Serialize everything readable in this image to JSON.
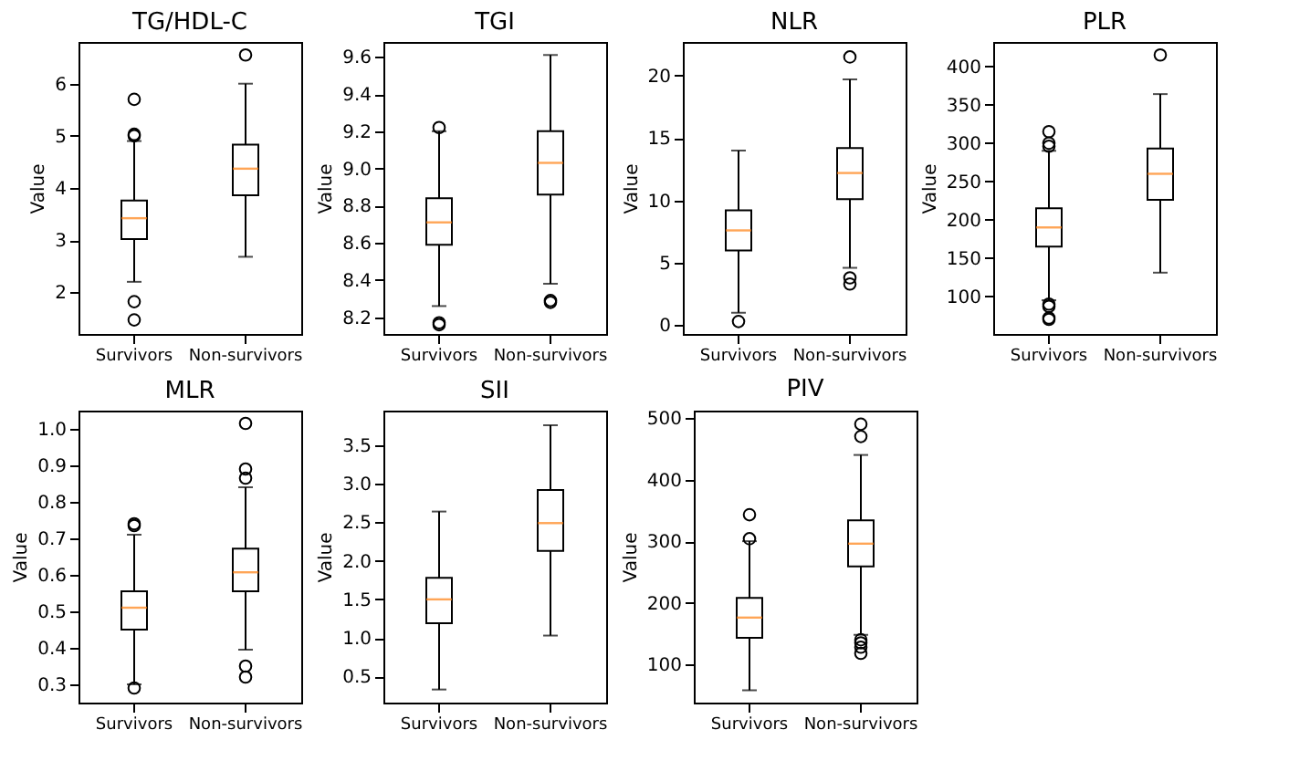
{
  "chart_data": [
    {
      "type": "box",
      "title": "TG/HDL-C",
      "ylabel": "Value",
      "categories": [
        "Survivors",
        "Non-survivors"
      ],
      "ylim": [
        1.2,
        6.8
      ],
      "yticks": [
        2,
        3,
        4,
        5,
        6
      ],
      "boxes": [
        {
          "low": 2.2,
          "q1": 3.02,
          "median": 3.42,
          "q3": 3.76,
          "high": 4.9,
          "outliers": [
            5.7,
            5.03,
            5.0,
            1.82,
            1.47
          ]
        },
        {
          "low": 2.68,
          "q1": 3.86,
          "median": 4.37,
          "q3": 4.83,
          "high": 6.0,
          "outliers": [
            6.55
          ]
        }
      ]
    },
    {
      "type": "box",
      "title": "TGI",
      "ylabel": "Value",
      "categories": [
        "Survivors",
        "Non-survivors"
      ],
      "ylim": [
        8.11,
        9.68
      ],
      "yticks": [
        8.2,
        8.4,
        8.6,
        8.8,
        {
          "value": 9,
          "label": "9.0"
        },
        9.2,
        9.4,
        9.6
      ],
      "boxes": [
        {
          "low": 8.26,
          "q1": 8.59,
          "median": 8.71,
          "q3": 8.84,
          "high": 9.2,
          "outliers": [
            9.22,
            8.17,
            8.16
          ]
        },
        {
          "low": 8.38,
          "q1": 8.86,
          "median": 9.03,
          "q3": 9.2,
          "high": 9.61,
          "outliers": [
            8.29,
            8.28
          ]
        }
      ]
    },
    {
      "type": "box",
      "title": "NLR",
      "ylabel": "Value",
      "categories": [
        "Survivors",
        "Non-survivors"
      ],
      "ylim": [
        -0.7,
        22.7
      ],
      "yticks": [
        0,
        5,
        10,
        15,
        20
      ],
      "boxes": [
        {
          "low": 1.0,
          "q1": 6.0,
          "median": 7.6,
          "q3": 9.2,
          "high": 14.0,
          "outliers": [
            0.3
          ]
        },
        {
          "low": 4.6,
          "q1": 10.1,
          "median": 12.2,
          "q3": 14.2,
          "high": 19.7,
          "outliers": [
            21.5,
            3.8,
            3.3
          ]
        }
      ]
    },
    {
      "type": "box",
      "title": "PLR",
      "ylabel": "Value",
      "categories": [
        "Survivors",
        "Non-survivors"
      ],
      "ylim": [
        51,
        432
      ],
      "yticks": [
        100,
        150,
        200,
        250,
        300,
        350,
        400
      ],
      "boxes": [
        {
          "low": 95,
          "q1": 165,
          "median": 190,
          "q3": 215,
          "high": 290,
          "outliers": [
            315,
            300,
            296,
            90,
            87,
            72,
            70
          ]
        },
        {
          "low": 131,
          "q1": 226,
          "median": 260,
          "q3": 293,
          "high": 364,
          "outliers": [
            415
          ]
        }
      ]
    },
    {
      "type": "box",
      "title": "MLR",
      "ylabel": "Value",
      "categories": [
        "Survivors",
        "Non-survivors"
      ],
      "ylim": [
        0.25,
        1.05
      ],
      "yticks": [
        0.3,
        0.4,
        0.5,
        0.6,
        0.7,
        0.8,
        0.9,
        {
          "value": 1,
          "label": "1.0"
        }
      ],
      "boxes": [
        {
          "low": 0.3,
          "q1": 0.45,
          "median": 0.51,
          "q3": 0.555,
          "high": 0.71,
          "outliers": [
            0.74,
            0.735,
            0.29
          ]
        },
        {
          "low": 0.395,
          "q1": 0.555,
          "median": 0.607,
          "q3": 0.672,
          "high": 0.84,
          "outliers": [
            1.015,
            0.89,
            0.865,
            0.35,
            0.32
          ]
        }
      ]
    },
    {
      "type": "box",
      "title": "SII",
      "ylabel": "Value",
      "categories": [
        "Survivors",
        "Non-survivors"
      ],
      "ylim": [
        0.16,
        3.95
      ],
      "yticks": [
        0.5,
        {
          "value": 1,
          "label": "1.0"
        },
        1.5,
        {
          "value": 2,
          "label": "2.0"
        },
        2.5,
        {
          "value": 3,
          "label": "3.0"
        },
        3.5
      ],
      "boxes": [
        {
          "low": 0.33,
          "q1": 1.19,
          "median": 1.5,
          "q3": 1.78,
          "high": 2.64
        },
        {
          "low": 1.03,
          "q1": 2.13,
          "median": 2.49,
          "q3": 2.92,
          "high": 3.76
        }
      ]
    },
    {
      "type": "box",
      "title": "PIV",
      "ylabel": "Value",
      "categories": [
        "Survivors",
        "Non-survivors"
      ],
      "ylim": [
        38,
        512
      ],
      "yticks": [
        100,
        200,
        300,
        400,
        500
      ],
      "boxes": [
        {
          "low": 58,
          "q1": 143,
          "median": 176,
          "q3": 208,
          "high": 300,
          "outliers": [
            343,
            304
          ]
        },
        {
          "low": 148,
          "q1": 259,
          "median": 296,
          "q3": 334,
          "high": 440,
          "outliers": [
            490,
            470,
            140,
            135,
            128,
            118
          ]
        }
      ]
    }
  ]
}
